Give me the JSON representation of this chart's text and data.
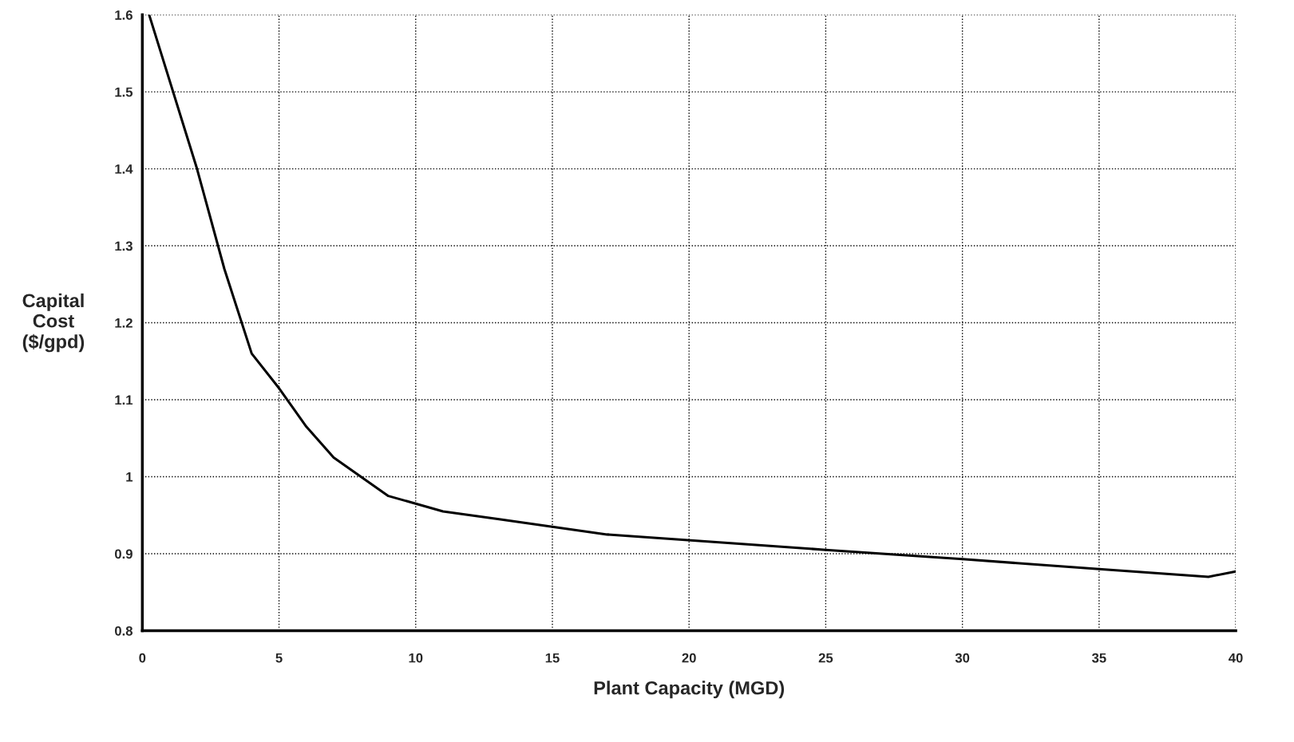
{
  "chart_data": {
    "type": "line",
    "xlabel": "Plant Capacity (MGD)",
    "ylabel": "Capital\nCost\n($/gpd)",
    "series": [
      {
        "color": "#000000",
        "x": [
          0.25,
          2,
          3,
          4,
          5,
          6,
          7,
          9,
          11,
          13,
          17,
          21,
          25,
          30,
          35,
          39,
          40
        ],
        "values": [
          1.6,
          1.4,
          1.27,
          1.16,
          1.115,
          1.065,
          1.025,
          0.975,
          0.955,
          0.945,
          0.925,
          0.915,
          0.905,
          0.893,
          0.88,
          0.87,
          0.877
        ]
      }
    ],
    "xlim": [
      0,
      40
    ],
    "xticks": [
      0,
      5,
      10,
      15,
      20,
      25,
      30,
      35,
      40
    ],
    "ylim": [
      0.8,
      1.6
    ],
    "yticks": [
      {
        "value": 0.8,
        "label": "0.8"
      },
      {
        "value": 0.9,
        "label": "0.9"
      },
      {
        "value": 1.0,
        "label": "1"
      },
      {
        "value": 1.1,
        "label": "1.1"
      },
      {
        "value": 1.2,
        "label": "1.2"
      },
      {
        "value": 1.3,
        "label": "1.3"
      },
      {
        "value": 1.4,
        "label": "1.4"
      },
      {
        "value": 1.5,
        "label": "1.5"
      },
      {
        "value": 1.6,
        "label": "1.6"
      }
    ],
    "grid": true,
    "legend": false,
    "marker": "none",
    "line_style": "solid"
  }
}
